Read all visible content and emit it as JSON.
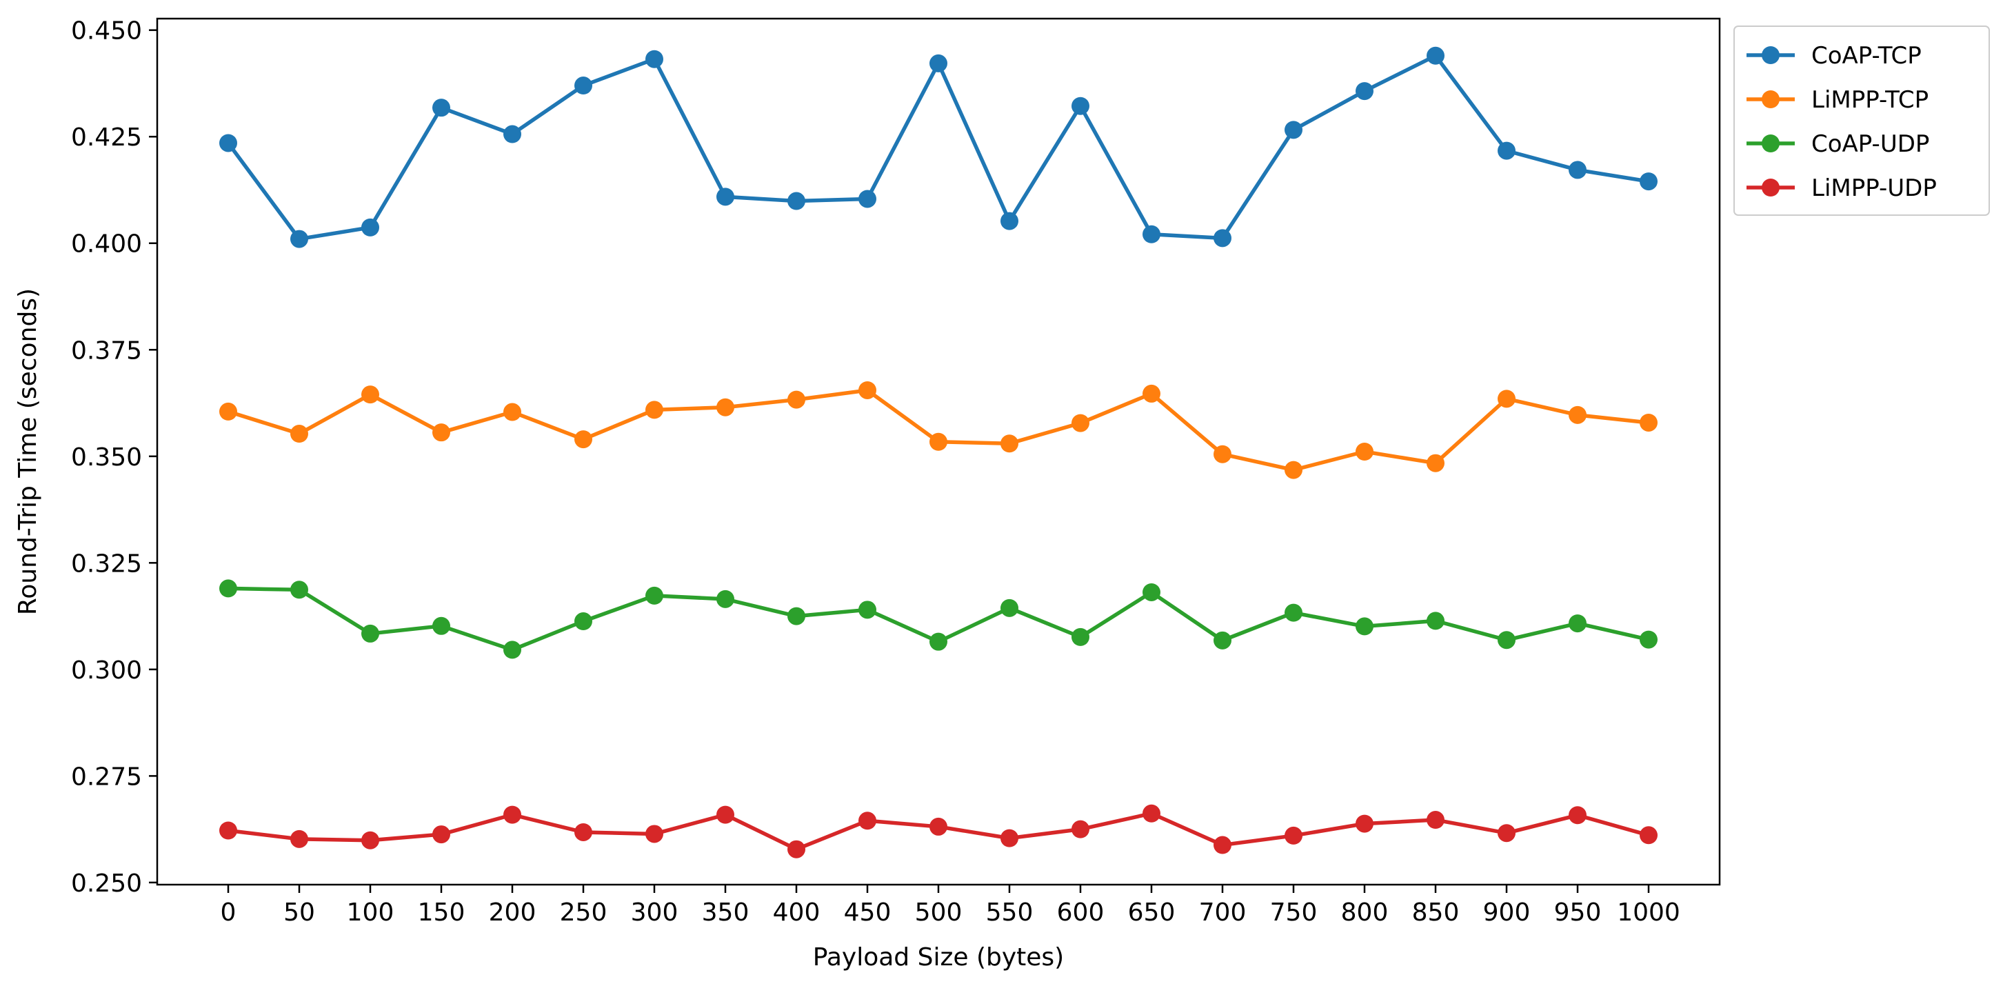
{
  "chart_data": {
    "type": "line",
    "title": "",
    "xlabel": "Payload Size (bytes)",
    "ylabel": "Round-Trip Time (seconds)",
    "x": [
      0,
      50,
      100,
      150,
      200,
      250,
      300,
      350,
      400,
      450,
      500,
      550,
      600,
      650,
      700,
      750,
      800,
      850,
      900,
      950,
      1000
    ],
    "x_tick_labels": [
      "0",
      "50",
      "100",
      "150",
      "200",
      "250",
      "300",
      "350",
      "400",
      "450",
      "500",
      "550",
      "600",
      "650",
      "700",
      "750",
      "800",
      "850",
      "900",
      "950",
      "1000"
    ],
    "y_ticks": [
      0.25,
      0.275,
      0.3,
      0.325,
      0.35,
      0.375,
      0.4,
      0.425,
      0.45
    ],
    "y_tick_labels": [
      "0.250",
      "0.275",
      "0.300",
      "0.325",
      "0.350",
      "0.375",
      "0.400",
      "0.425",
      "0.450"
    ],
    "xlim": [
      -50,
      1050
    ],
    "ylim": [
      0.2495,
      0.4527
    ],
    "grid": false,
    "legend_position": "outside-top-right",
    "series": [
      {
        "name": "CoAP-TCP",
        "color": "#1f77b4",
        "values": [
          0.4235,
          0.401,
          0.4037,
          0.4318,
          0.4256,
          0.437,
          0.4432,
          0.4109,
          0.4099,
          0.4104,
          0.4422,
          0.4052,
          0.4322,
          0.4021,
          0.4012,
          0.4266,
          0.4357,
          0.444,
          0.4217,
          0.4172,
          0.4145
        ]
      },
      {
        "name": "LiMPP-TCP",
        "color": "#ff7f0e",
        "values": [
          0.3605,
          0.3553,
          0.3645,
          0.3556,
          0.3604,
          0.354,
          0.3609,
          0.3615,
          0.3633,
          0.3655,
          0.3534,
          0.353,
          0.3578,
          0.3647,
          0.3505,
          0.3468,
          0.3511,
          0.3484,
          0.3635,
          0.3597,
          0.3579
        ]
      },
      {
        "name": "CoAP-UDP",
        "color": "#2ca02c",
        "values": [
          0.319,
          0.3187,
          0.3084,
          0.3102,
          0.3046,
          0.3113,
          0.3173,
          0.3165,
          0.3125,
          0.314,
          0.3065,
          0.3144,
          0.3076,
          0.3181,
          0.3068,
          0.3133,
          0.3101,
          0.3114,
          0.3069,
          0.3108,
          0.307
        ]
      },
      {
        "name": "LiMPP-UDP",
        "color": "#d62728",
        "values": [
          0.2622,
          0.2602,
          0.2599,
          0.2613,
          0.2659,
          0.2618,
          0.2614,
          0.2659,
          0.2578,
          0.2645,
          0.2631,
          0.2604,
          0.2625,
          0.2662,
          0.2588,
          0.261,
          0.2638,
          0.2647,
          0.2616,
          0.2658,
          0.2611
        ]
      }
    ]
  }
}
